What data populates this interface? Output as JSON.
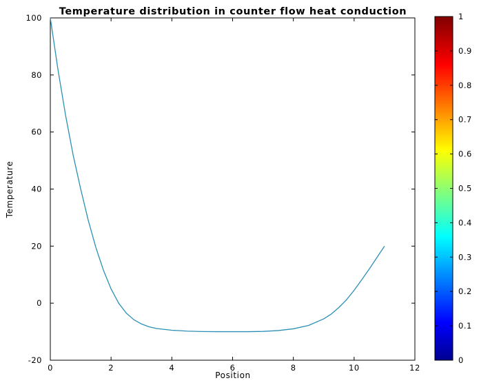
{
  "chart_data": {
    "type": "line",
    "title": "Temperature distribution in counter flow heat conduction",
    "xlabel": "Position",
    "ylabel": "Temperature",
    "xlim": [
      0,
      12
    ],
    "ylim": [
      -20,
      100
    ],
    "xticks": [
      0,
      2,
      4,
      6,
      8,
      10,
      12
    ],
    "yticks": [
      -20,
      0,
      20,
      40,
      60,
      80,
      100
    ],
    "grid": false,
    "series": [
      {
        "color": "#2a8fb5",
        "x": [
          0,
          0.25,
          0.5,
          0.75,
          1.0,
          1.25,
          1.5,
          1.75,
          2.0,
          2.25,
          2.5,
          2.75,
          3.0,
          3.25,
          3.5,
          4.0,
          4.5,
          5.0,
          5.5,
          6.0,
          6.5,
          7.0,
          7.5,
          8.0,
          8.5,
          9.0,
          9.25,
          9.5,
          9.75,
          10.0,
          10.25,
          10.5,
          10.75,
          11.0
        ],
        "y": [
          100,
          82,
          66,
          52,
          40,
          29,
          19.5,
          11.5,
          5,
          0,
          -3.5,
          -5.8,
          -7.3,
          -8.3,
          -8.9,
          -9.5,
          -9.8,
          -9.95,
          -10,
          -10,
          -10,
          -9.9,
          -9.6,
          -9,
          -7.8,
          -5.5,
          -3.8,
          -1.5,
          1.2,
          4.5,
          8.2,
          12,
          16,
          20
        ]
      }
    ],
    "colorbar": {
      "colormap": "jet",
      "range": [
        0,
        1
      ],
      "ticks": [
        "0",
        "0.1",
        "0.2",
        "0.3",
        "0.4",
        "0.5",
        "0.6",
        "0.7",
        "0.8",
        "0.9",
        "1"
      ]
    }
  }
}
